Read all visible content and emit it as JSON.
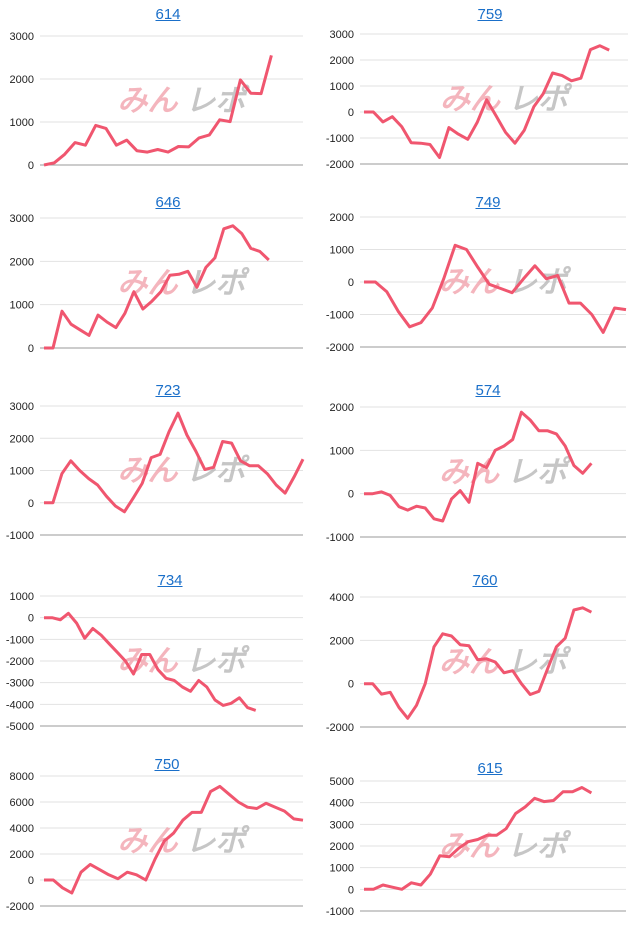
{
  "page": {
    "watermark_kana": "みん",
    "watermark_latin": "レポ"
  },
  "colors": {
    "line": "#f0566f",
    "grid": "#e2e2e2",
    "axis": "#999999",
    "title": "#1a6fc9",
    "wm_pink": "#f2a3ad",
    "wm_gray": "#b9b9b9"
  },
  "chart_data": [
    {
      "type": "line",
      "title": "614",
      "yticks": [
        0,
        1000,
        2000,
        3000
      ],
      "ylim": [
        0,
        3000
      ],
      "values": [
        0,
        50,
        250,
        520,
        460,
        920,
        850,
        460,
        580,
        330,
        300,
        360,
        300,
        430,
        420,
        630,
        700,
        1050,
        1010,
        1980,
        1670,
        1660,
        2550
      ]
    },
    {
      "type": "line",
      "title": "759",
      "yticks": [
        -2000,
        -1000,
        0,
        1000,
        2000,
        3000
      ],
      "ylim": [
        -2000,
        3000
      ],
      "values": [
        0,
        0,
        -380,
        -180,
        -560,
        -1180,
        -1200,
        -1250,
        -1750,
        -600,
        -850,
        -1050,
        -400,
        470,
        -150,
        -780,
        -1200,
        -700,
        200,
        700,
        1500,
        1400,
        1200,
        1300,
        2400,
        2550,
        2380
      ]
    },
    {
      "type": "line",
      "title": "646",
      "yticks": [
        0,
        1000,
        2000,
        3000
      ],
      "ylim": [
        0,
        3000
      ],
      "values": [
        0,
        0,
        850,
        550,
        420,
        290,
        760,
        600,
        470,
        800,
        1300,
        900,
        1080,
        1300,
        1680,
        1700,
        1770,
        1400,
        1860,
        2080,
        2750,
        2820,
        2640,
        2300,
        2230,
        2030
      ]
    },
    {
      "type": "line",
      "title": "749",
      "yticks": [
        -2000,
        -1000,
        0,
        1000,
        2000
      ],
      "ylim": [
        -2000,
        2000
      ],
      "values": [
        0,
        0,
        -300,
        -900,
        -1380,
        -1250,
        -800,
        100,
        1130,
        1000,
        450,
        -70,
        -200,
        -330,
        100,
        500,
        100,
        200,
        -650,
        -650,
        -1000,
        -1550,
        -800,
        -850
      ]
    },
    {
      "type": "line",
      "title": "723",
      "yticks": [
        -1000,
        0,
        1000,
        2000,
        3000
      ],
      "ylim": [
        -1000,
        3000
      ],
      "values": [
        0,
        0,
        900,
        1300,
        1000,
        750,
        550,
        200,
        -100,
        -280,
        150,
        600,
        1400,
        1500,
        2200,
        2780,
        2100,
        1600,
        1030,
        1100,
        1900,
        1850,
        1300,
        1150,
        1150,
        900,
        550,
        300,
        800,
        1350
      ]
    },
    {
      "type": "line",
      "title": "574",
      "yticks": [
        -1000,
        0,
        1000,
        2000
      ],
      "ylim": [
        -1000,
        2000
      ],
      "values": [
        0,
        0,
        40,
        -40,
        -300,
        -380,
        -290,
        -330,
        -580,
        -630,
        -120,
        70,
        -200,
        700,
        600,
        1000,
        1100,
        1250,
        1880,
        1700,
        1450,
        1450,
        1380,
        1100,
        650,
        470,
        700
      ]
    },
    {
      "type": "line",
      "title": "734",
      "yticks": [
        -5000,
        -4000,
        -3000,
        -2000,
        -1000,
        0,
        1000
      ],
      "ylim": [
        -5000,
        1000
      ],
      "values": [
        0,
        0,
        -100,
        200,
        -250,
        -950,
        -500,
        -800,
        -1200,
        -1600,
        -2000,
        -2600,
        -1700,
        -1700,
        -2400,
        -2800,
        -2900,
        -3200,
        -3400,
        -2900,
        -3200,
        -3800,
        -4050,
        -3950,
        -3700,
        -4150,
        -4280
      ]
    },
    {
      "type": "line",
      "title": "760",
      "yticks": [
        -2000,
        0,
        2000,
        4000
      ],
      "ylim": [
        -2000,
        4000
      ],
      "values": [
        0,
        0,
        -480,
        -400,
        -1100,
        -1600,
        -1000,
        0,
        1700,
        2300,
        2200,
        1800,
        1750,
        1100,
        1150,
        1000,
        500,
        600,
        0,
        -500,
        -350,
        700,
        1700,
        2100,
        3400,
        3500,
        3300
      ]
    },
    {
      "type": "line",
      "title": "750",
      "yticks": [
        -2000,
        0,
        2000,
        4000,
        6000,
        8000
      ],
      "ylim": [
        -2000,
        8000
      ],
      "values": [
        0,
        0,
        -600,
        -1000,
        600,
        1200,
        800,
        400,
        100,
        600,
        400,
        0,
        1600,
        3000,
        3600,
        4600,
        5200,
        5200,
        6800,
        7200,
        6600,
        6000,
        5600,
        5500,
        5900,
        5600,
        5300,
        4700,
        4600
      ]
    },
    {
      "type": "line",
      "title": "615",
      "yticks": [
        -1000,
        0,
        1000,
        2000,
        3000,
        4000,
        5000
      ],
      "ylim": [
        -1000,
        5000
      ],
      "values": [
        0,
        0,
        200,
        100,
        0,
        300,
        200,
        700,
        1550,
        1500,
        1900,
        2200,
        2300,
        2500,
        2500,
        2800,
        3500,
        3800,
        4200,
        4050,
        4100,
        4500,
        4500,
        4700,
        4450
      ]
    }
  ]
}
